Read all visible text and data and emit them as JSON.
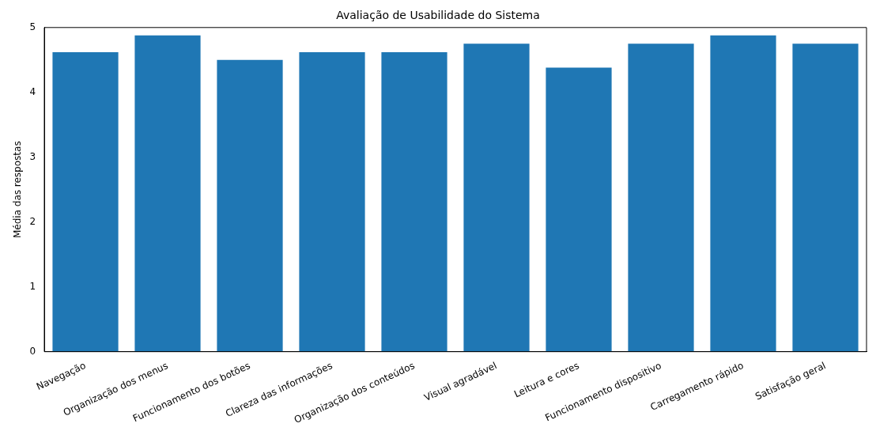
{
  "chart_data": {
    "type": "bar",
    "title": "Avaliação de Usabilidade do Sistema",
    "ylabel": "Média das respostas",
    "categories": [
      "Navegação",
      "Organização dos menus",
      "Funcionamento dos botões",
      "Clareza das informações",
      "Organização dos conteúdos",
      "Visual agradável",
      "Leitura e cores",
      "Funcionamento dispositivo",
      "Carregamento rápido",
      "Satisfação geral"
    ],
    "values": [
      4.62,
      4.88,
      4.5,
      4.62,
      4.62,
      4.75,
      4.38,
      4.75,
      4.88,
      4.75
    ],
    "color": "#1f77b4",
    "ylim": [
      0,
      5
    ],
    "yticks": [
      0,
      1,
      2,
      3,
      4,
      5
    ],
    "grid": false,
    "legend": false
  }
}
